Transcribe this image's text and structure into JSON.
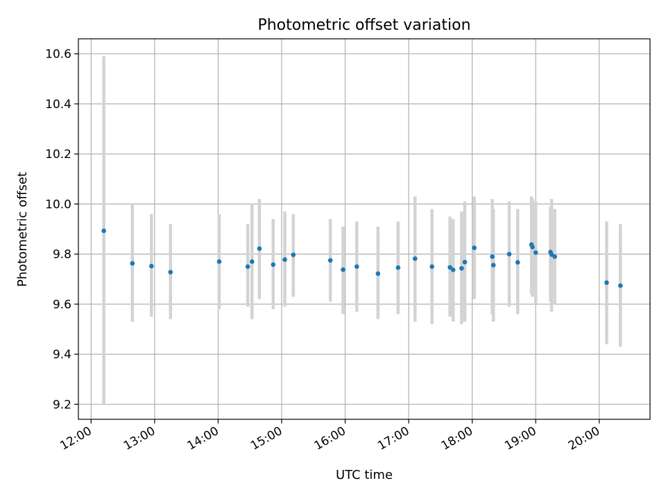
{
  "chart_data": {
    "type": "scatter",
    "title": "Photometric offset variation",
    "xlabel": "UTC time",
    "ylabel": "Photometric offset",
    "x_tick_labels": [
      "12:00",
      "13:00",
      "14:00",
      "15:00",
      "16:00",
      "17:00",
      "18:00",
      "19:00",
      "20:00"
    ],
    "y_tick_labels": [
      "9.2",
      "9.4",
      "9.6",
      "9.8",
      "10.0",
      "10.2",
      "10.4",
      "10.6"
    ],
    "xlim": [
      "11:48",
      "20:48"
    ],
    "ylim": [
      9.14,
      10.66
    ],
    "grid": true,
    "x_time_unit": "UTC",
    "points": [
      {
        "time": "12:12",
        "y": 9.893,
        "ylow": 9.2,
        "yhigh": 10.59
      },
      {
        "time": "12:39",
        "y": 9.763,
        "ylow": 9.53,
        "yhigh": 10.0
      },
      {
        "time": "12:57",
        "y": 9.752,
        "ylow": 9.55,
        "yhigh": 9.96
      },
      {
        "time": "13:15",
        "y": 9.728,
        "ylow": 9.54,
        "yhigh": 9.92
      },
      {
        "time": "14:01",
        "y": 9.77,
        "ylow": 9.58,
        "yhigh": 9.96
      },
      {
        "time": "14:28",
        "y": 9.75,
        "ylow": 9.59,
        "yhigh": 9.92
      },
      {
        "time": "14:32",
        "y": 9.77,
        "ylow": 9.54,
        "yhigh": 10.0
      },
      {
        "time": "14:39",
        "y": 9.822,
        "ylow": 9.62,
        "yhigh": 10.02
      },
      {
        "time": "14:52",
        "y": 9.758,
        "ylow": 9.58,
        "yhigh": 9.94
      },
      {
        "time": "15:03",
        "y": 9.778,
        "ylow": 9.59,
        "yhigh": 9.97
      },
      {
        "time": "15:11",
        "y": 9.797,
        "ylow": 9.63,
        "yhigh": 9.96
      },
      {
        "time": "15:46",
        "y": 9.775,
        "ylow": 9.61,
        "yhigh": 9.94
      },
      {
        "time": "15:58",
        "y": 9.738,
        "ylow": 9.56,
        "yhigh": 9.91
      },
      {
        "time": "16:11",
        "y": 9.75,
        "ylow": 9.57,
        "yhigh": 9.93
      },
      {
        "time": "16:31",
        "y": 9.722,
        "ylow": 9.54,
        "yhigh": 9.91
      },
      {
        "time": "16:50",
        "y": 9.746,
        "ylow": 9.56,
        "yhigh": 9.93
      },
      {
        "time": "17:06",
        "y": 9.782,
        "ylow": 9.53,
        "yhigh": 10.03
      },
      {
        "time": "17:22",
        "y": 9.75,
        "ylow": 9.52,
        "yhigh": 9.98
      },
      {
        "time": "17:39",
        "y": 9.747,
        "ylow": 9.55,
        "yhigh": 9.95
      },
      {
        "time": "17:42",
        "y": 9.737,
        "ylow": 9.53,
        "yhigh": 9.94
      },
      {
        "time": "17:50",
        "y": 9.743,
        "ylow": 9.52,
        "yhigh": 9.97
      },
      {
        "time": "17:53",
        "y": 9.768,
        "ylow": 9.53,
        "yhigh": 10.01
      },
      {
        "time": "18:02",
        "y": 9.825,
        "ylow": 9.62,
        "yhigh": 10.03
      },
      {
        "time": "18:19",
        "y": 9.79,
        "ylow": 9.56,
        "yhigh": 10.02
      },
      {
        "time": "18:20",
        "y": 9.756,
        "ylow": 9.53,
        "yhigh": 9.98
      },
      {
        "time": "18:35",
        "y": 9.8,
        "ylow": 9.59,
        "yhigh": 10.01
      },
      {
        "time": "18:43",
        "y": 9.767,
        "ylow": 9.56,
        "yhigh": 9.98
      },
      {
        "time": "18:56",
        "y": 9.838,
        "ylow": 9.64,
        "yhigh": 10.03
      },
      {
        "time": "18:57",
        "y": 9.828,
        "ylow": 9.63,
        "yhigh": 10.02
      },
      {
        "time": "19:00",
        "y": 9.806,
        "ylow": 9.6,
        "yhigh": 10.01
      },
      {
        "time": "19:14",
        "y": 9.808,
        "ylow": 9.61,
        "yhigh": 9.99
      },
      {
        "time": "19:15",
        "y": 9.798,
        "ylow": 9.57,
        "yhigh": 10.02
      },
      {
        "time": "19:18",
        "y": 9.79,
        "ylow": 9.6,
        "yhigh": 9.98
      },
      {
        "time": "20:07",
        "y": 9.686,
        "ylow": 9.44,
        "yhigh": 9.93
      },
      {
        "time": "20:20",
        "y": 9.674,
        "ylow": 9.43,
        "yhigh": 9.92
      }
    ],
    "colors": {
      "point": "#1f77b4",
      "errorbar": "#d3d3d3",
      "grid": "#b0b0b0",
      "axes": "#000000"
    }
  }
}
